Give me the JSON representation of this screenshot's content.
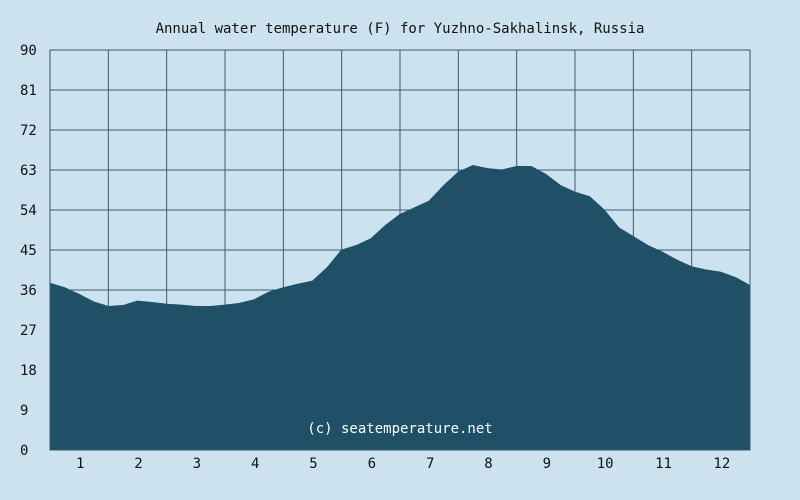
{
  "chart_data": {
    "type": "area",
    "title": "Annual water temperature (F) for Yuzhno-Sakhalinsk, Russia",
    "xlabel": "",
    "ylabel": "",
    "watermark": "(c) seatemperature.net",
    "ylim": [
      0,
      90
    ],
    "xlim": [
      0.5,
      12.5
    ],
    "y_ticks": [
      0,
      9,
      18,
      27,
      36,
      45,
      54,
      63,
      72,
      81,
      90
    ],
    "x_ticks": [
      1,
      2,
      3,
      4,
      5,
      6,
      7,
      8,
      9,
      10,
      11,
      12
    ],
    "grid": true,
    "colors": {
      "fill": "#1f5068",
      "background": "#cce3ef",
      "grid": "#3c5a6e"
    },
    "x": [
      0.5,
      0.75,
      1.0,
      1.25,
      1.5,
      1.75,
      2.0,
      2.25,
      2.5,
      2.75,
      3.0,
      3.25,
      3.5,
      3.75,
      4.0,
      4.25,
      4.5,
      4.75,
      5.0,
      5.25,
      5.5,
      5.75,
      6.0,
      6.25,
      6.5,
      6.75,
      7.0,
      7.25,
      7.5,
      7.75,
      8.0,
      8.25,
      8.5,
      8.75,
      9.0,
      9.25,
      9.5,
      9.75,
      10.0,
      10.25,
      10.5,
      10.75,
      11.0,
      11.25,
      11.5,
      11.75,
      12.0,
      12.25,
      12.5
    ],
    "values": [
      37.5,
      36.5,
      35.0,
      33.3,
      32.3,
      32.5,
      33.5,
      33.2,
      32.8,
      32.6,
      32.3,
      32.3,
      32.6,
      33.0,
      33.8,
      35.5,
      36.5,
      37.3,
      38.0,
      41.0,
      45.0,
      46.0,
      47.5,
      50.5,
      53.0,
      54.5,
      56.0,
      59.5,
      62.5,
      64.0,
      63.3,
      63.0,
      63.8,
      63.8,
      62.0,
      59.5,
      58.0,
      57.0,
      54.0,
      50.0,
      48.0,
      46.0,
      44.5,
      42.7,
      41.2,
      40.5,
      40.0,
      38.8,
      37.0
    ]
  }
}
